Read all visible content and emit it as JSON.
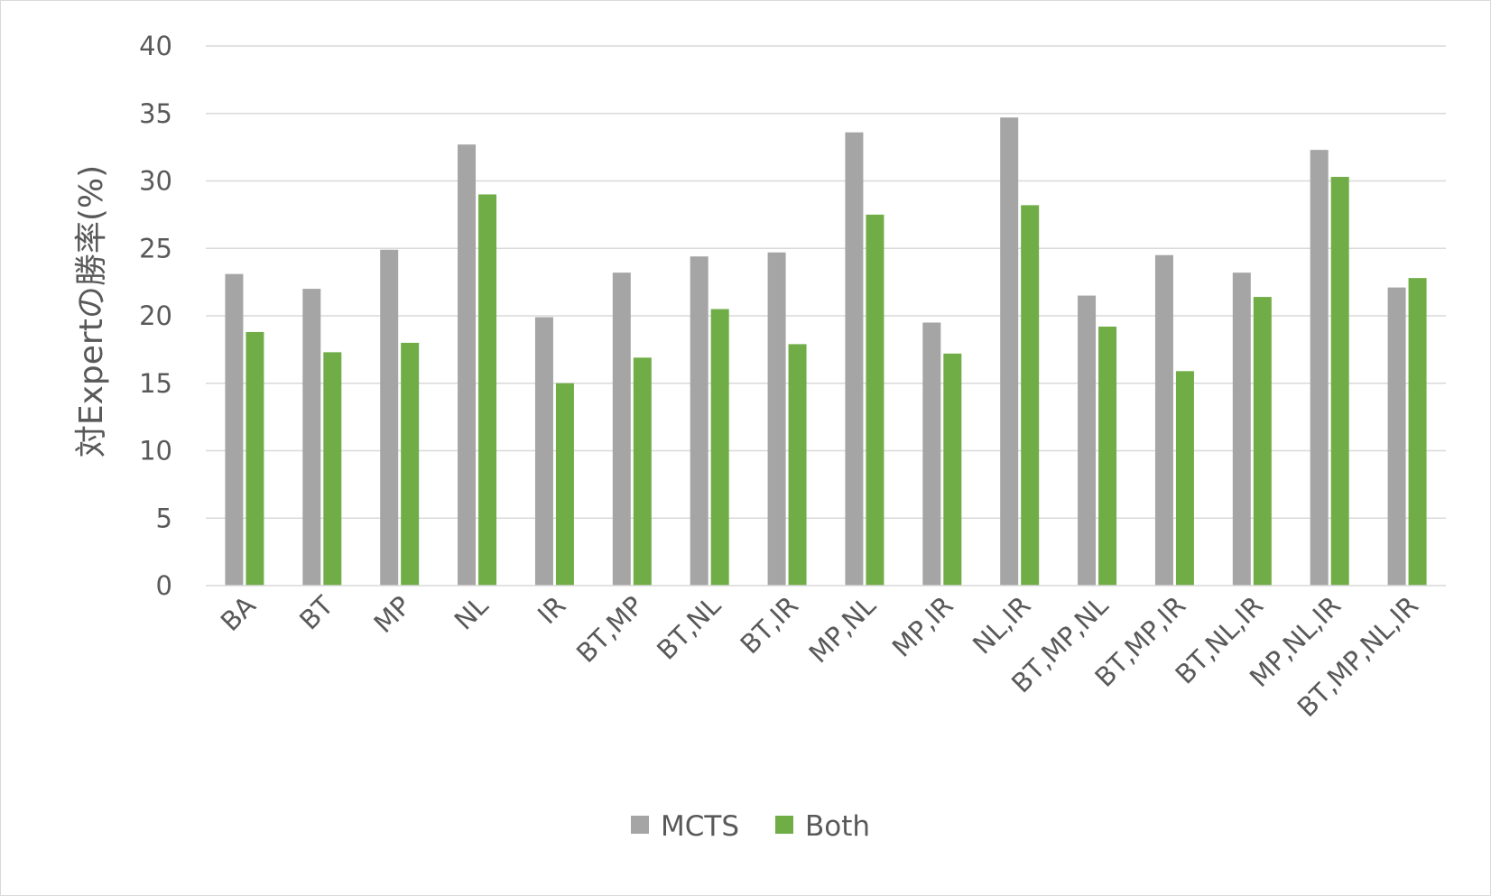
{
  "chart_data": {
    "type": "bar",
    "title": "",
    "xlabel": "",
    "ylabel": "対Expertの勝率(%)",
    "ylim": [
      0,
      40
    ],
    "yticks": [
      0,
      5,
      10,
      15,
      20,
      25,
      30,
      35,
      40
    ],
    "grid": true,
    "legend_position": "bottom",
    "categories": [
      "BA",
      "BT",
      "MP",
      "NL",
      "IR",
      "BT,MP",
      "BT,NL",
      "BT,IR",
      "MP,NL",
      "MP,IR",
      "NL,IR",
      "BT,MP,NL",
      "BT,MP,IR",
      "BT,NL,IR",
      "MP,NL,IR",
      "BT,MP,NL,IR"
    ],
    "series": [
      {
        "name": "MCTS",
        "color": "#a5a5a5",
        "values": [
          23.1,
          22.0,
          24.9,
          32.7,
          19.9,
          23.2,
          24.4,
          24.7,
          33.6,
          19.5,
          34.7,
          21.5,
          24.5,
          23.2,
          32.3,
          22.1
        ]
      },
      {
        "name": "Both",
        "color": "#70ad47",
        "values": [
          18.8,
          17.3,
          18.0,
          29.0,
          15.0,
          16.9,
          20.5,
          17.9,
          27.5,
          17.2,
          28.2,
          19.2,
          15.9,
          21.4,
          30.3,
          22.8
        ]
      }
    ]
  }
}
